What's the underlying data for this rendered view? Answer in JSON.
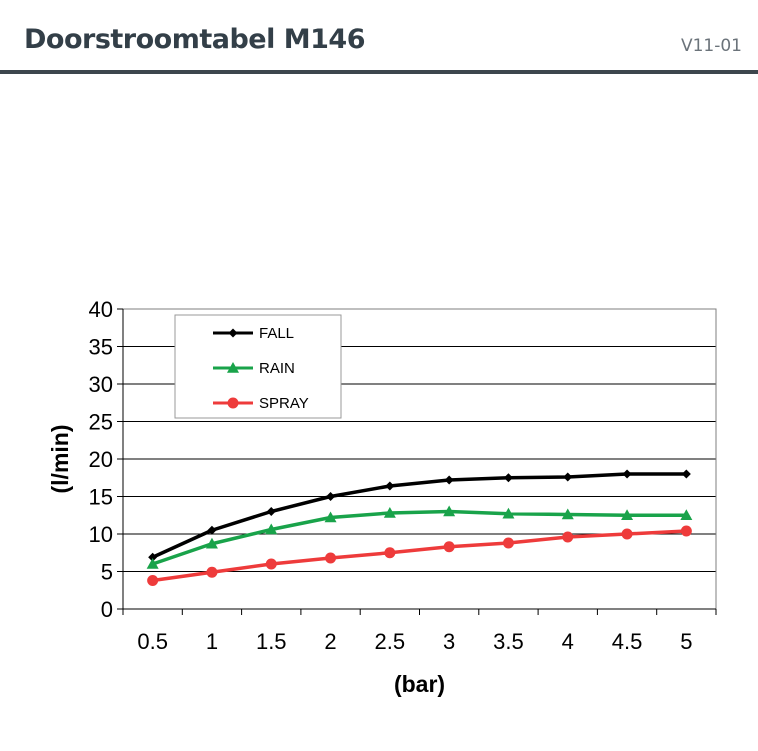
{
  "header": {
    "title": "Doorstroomtabel M146",
    "version": "V11-01"
  },
  "chart_data": {
    "type": "line",
    "xlabel": "(bar)",
    "ylabel": "(l/min)",
    "x": [
      0.5,
      1,
      1.5,
      2,
      2.5,
      3,
      3.5,
      4,
      4.5,
      5
    ],
    "x_tick_labels": [
      "0.5",
      "1",
      "1.5",
      "2",
      "2.5",
      "3",
      "3.5",
      "4",
      "4.5",
      "5"
    ],
    "y_ticks": [
      0,
      5,
      10,
      15,
      20,
      25,
      30,
      35,
      40
    ],
    "ylim": [
      0,
      40
    ],
    "grid": "horizontal",
    "legend_position": "top-left",
    "series": [
      {
        "name": "FALL",
        "color": "#000000",
        "marker": "diamond",
        "values": [
          6.9,
          10.5,
          13.0,
          15.0,
          16.4,
          17.2,
          17.5,
          17.6,
          18.0,
          18.0
        ]
      },
      {
        "name": "RAIN",
        "color": "#19a34a",
        "marker": "triangle",
        "values": [
          6.0,
          8.7,
          10.6,
          12.2,
          12.8,
          13.0,
          12.7,
          12.6,
          12.5,
          12.5
        ]
      },
      {
        "name": "SPRAY",
        "color": "#ee3b3b",
        "marker": "circle",
        "values": [
          3.8,
          4.9,
          6.0,
          6.8,
          7.5,
          8.3,
          8.8,
          9.6,
          10.0,
          10.4
        ]
      }
    ]
  }
}
